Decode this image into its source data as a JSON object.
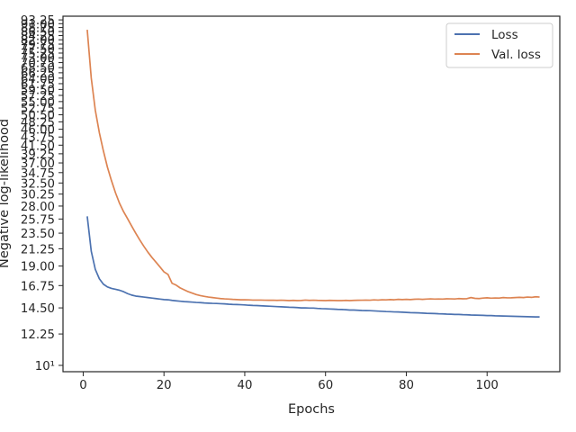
{
  "chart_data": {
    "type": "line",
    "xlabel": "Epochs",
    "ylabel": "Negative log-likelihood",
    "xlim": [
      -5,
      118
    ],
    "ylim": [
      9.6,
      95.5
    ],
    "yscale": "log",
    "grid": false,
    "legend_placement": "top-right",
    "x_ticks": [
      0,
      20,
      40,
      60,
      80,
      100
    ],
    "x_tick_labels": [
      "0",
      "20",
      "40",
      "60",
      "80",
      "100"
    ],
    "y_ticks": [
      10,
      12.25,
      14.5,
      16.75,
      19.0,
      21.25,
      23.5,
      25.75,
      28.0,
      30.25,
      32.5,
      34.75,
      37.0,
      39.25,
      41.5,
      43.75,
      46.0,
      48.25,
      50.5,
      52.75,
      55.0,
      57.25,
      59.5,
      61.75,
      64.0,
      66.25,
      68.5,
      70.75,
      73.0,
      75.25,
      77.5,
      79.75,
      82.0,
      84.25,
      86.5,
      88.75,
      91.0,
      93.25
    ],
    "y_tick_labels": [
      "10¹",
      "12.25",
      "14.50",
      "16.75",
      "19.00",
      "21.25",
      "23.50",
      "25.75",
      "28.00",
      "30.25",
      "32.50",
      "34.75",
      "37.00",
      "39.25",
      "41.50",
      "43.75",
      "46.00",
      "48.25",
      "50.50",
      "52.75",
      "55.00",
      "57.25",
      "59.50",
      "61.75",
      "64.00",
      "66.25",
      "68.50",
      "70.75",
      "73.00",
      "75.25",
      "77.50",
      "79.75",
      "82.00",
      "84.25",
      "86.50",
      "88.75",
      "91.00",
      "93.25"
    ],
    "series": [
      {
        "name": "Loss",
        "color": "#4c72b0",
        "x": [
          1,
          2,
          3,
          4,
          5,
          6,
          7,
          8,
          9,
          10,
          11,
          12,
          13,
          14,
          15,
          16,
          17,
          18,
          19,
          20,
          21,
          22,
          23,
          24,
          25,
          26,
          27,
          28,
          29,
          30,
          31,
          32,
          33,
          34,
          35,
          36,
          37,
          38,
          39,
          40,
          41,
          42,
          43,
          44,
          45,
          46,
          47,
          48,
          49,
          50,
          51,
          52,
          53,
          54,
          55,
          56,
          57,
          58,
          59,
          60,
          61,
          62,
          63,
          64,
          65,
          66,
          67,
          68,
          69,
          70,
          71,
          72,
          73,
          74,
          75,
          76,
          77,
          78,
          79,
          80,
          81,
          82,
          83,
          84,
          85,
          86,
          87,
          88,
          89,
          90,
          91,
          92,
          93,
          94,
          95,
          96,
          97,
          98,
          99,
          100,
          101,
          102,
          103,
          104,
          105,
          106,
          107,
          108,
          109,
          110,
          111,
          112,
          113
        ],
        "values": [
          26.2,
          20.9,
          18.6,
          17.5,
          16.9,
          16.6,
          16.45,
          16.35,
          16.25,
          16.1,
          15.9,
          15.75,
          15.65,
          15.6,
          15.55,
          15.5,
          15.45,
          15.4,
          15.35,
          15.3,
          15.28,
          15.22,
          15.18,
          15.14,
          15.1,
          15.08,
          15.05,
          15.02,
          15.0,
          14.97,
          14.95,
          14.93,
          14.92,
          14.9,
          14.88,
          14.85,
          14.83,
          14.82,
          14.8,
          14.78,
          14.75,
          14.73,
          14.72,
          14.7,
          14.68,
          14.66,
          14.64,
          14.62,
          14.6,
          14.58,
          14.56,
          14.55,
          14.53,
          14.5,
          14.5,
          14.48,
          14.48,
          14.45,
          14.43,
          14.42,
          14.4,
          14.38,
          14.36,
          14.35,
          14.33,
          14.3,
          14.3,
          14.28,
          14.26,
          14.25,
          14.24,
          14.22,
          14.2,
          14.18,
          14.16,
          14.15,
          14.13,
          14.12,
          14.1,
          14.08,
          14.06,
          14.05,
          14.04,
          14.02,
          14.0,
          13.99,
          13.98,
          13.96,
          13.95,
          13.93,
          13.92,
          13.9,
          13.9,
          13.88,
          13.87,
          13.85,
          13.84,
          13.83,
          13.82,
          13.8,
          13.8,
          13.78,
          13.77,
          13.76,
          13.75,
          13.74,
          13.73,
          13.72,
          13.71,
          13.7,
          13.69,
          13.68,
          13.68
        ]
      },
      {
        "name": "Val. loss",
        "color": "#dd8452",
        "x": [
          1,
          2,
          3,
          4,
          5,
          6,
          7,
          8,
          9,
          10,
          11,
          12,
          13,
          14,
          15,
          16,
          17,
          18,
          19,
          20,
          21,
          22,
          23,
          24,
          25,
          26,
          27,
          28,
          29,
          30,
          31,
          32,
          33,
          34,
          35,
          36,
          37,
          38,
          39,
          40,
          41,
          42,
          43,
          44,
          45,
          46,
          47,
          48,
          49,
          50,
          51,
          52,
          53,
          54,
          55,
          56,
          57,
          58,
          59,
          60,
          61,
          62,
          63,
          64,
          65,
          66,
          67,
          68,
          69,
          70,
          71,
          72,
          73,
          74,
          75,
          76,
          77,
          78,
          79,
          80,
          81,
          82,
          83,
          84,
          85,
          86,
          87,
          88,
          89,
          90,
          91,
          92,
          93,
          94,
          95,
          96,
          97,
          98,
          99,
          100,
          101,
          102,
          103,
          104,
          105,
          106,
          107,
          108,
          109,
          110,
          111,
          112,
          113
        ],
        "values": [
          87.5,
          64.0,
          52.0,
          45.0,
          40.0,
          36.0,
          33.0,
          30.5,
          28.5,
          27.0,
          25.8,
          24.6,
          23.5,
          22.5,
          21.6,
          20.8,
          20.1,
          19.5,
          18.9,
          18.3,
          18.0,
          17.0,
          16.8,
          16.5,
          16.3,
          16.1,
          15.95,
          15.8,
          15.7,
          15.62,
          15.55,
          15.5,
          15.45,
          15.4,
          15.37,
          15.35,
          15.32,
          15.3,
          15.28,
          15.28,
          15.27,
          15.25,
          15.25,
          15.25,
          15.24,
          15.23,
          15.24,
          15.22,
          15.24,
          15.22,
          15.2,
          15.22,
          15.2,
          15.21,
          15.25,
          15.22,
          15.24,
          15.22,
          15.21,
          15.2,
          15.22,
          15.21,
          15.2,
          15.2,
          15.22,
          15.2,
          15.22,
          15.23,
          15.24,
          15.25,
          15.24,
          15.27,
          15.25,
          15.28,
          15.27,
          15.3,
          15.28,
          15.32,
          15.3,
          15.32,
          15.3,
          15.33,
          15.35,
          15.32,
          15.35,
          15.37,
          15.35,
          15.36,
          15.35,
          15.38,
          15.37,
          15.36,
          15.4,
          15.38,
          15.39,
          15.5,
          15.42,
          15.4,
          15.45,
          15.48,
          15.44,
          15.46,
          15.45,
          15.5,
          15.47,
          15.48,
          15.5,
          15.52,
          15.5,
          15.55,
          15.52,
          15.58,
          15.55
        ]
      }
    ]
  }
}
